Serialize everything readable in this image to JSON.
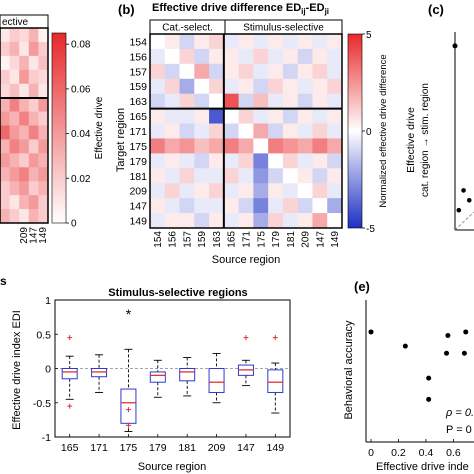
{
  "chart_data": [
    {
      "id": "a",
      "type": "heatmap",
      "panel_label": "",
      "title": "",
      "group_labels": [
        "ective"
      ],
      "colorbar_label": "Effective drive",
      "colorbar_ticks": [
        "0.08",
        "0.06",
        "0.04",
        "0.02",
        "0"
      ],
      "colorbar_range": [
        0,
        0.085
      ],
      "x_tick_labels": [
        "209",
        "147",
        "149"
      ],
      "values": [
        [
          0.01,
          0.02,
          0.015,
          0.03,
          0.005
        ],
        [
          0.02,
          0.03,
          0.01,
          0.04,
          0.02
        ],
        [
          0.005,
          0.015,
          0.03,
          0.01,
          0.025
        ],
        [
          0.02,
          0.01,
          0.04,
          0.02,
          0.015
        ],
        [
          0.015,
          0.025,
          0.01,
          0.03,
          0.01
        ],
        [
          0.03,
          0.05,
          0.03,
          0.02,
          0.04
        ],
        [
          0.04,
          0.03,
          0.05,
          0.03,
          0.02
        ],
        [
          0.06,
          0.04,
          0.03,
          0.05,
          0.03
        ],
        [
          0.03,
          0.05,
          0.04,
          0.02,
          0.04
        ],
        [
          0.04,
          0.03,
          0.02,
          0.04,
          0.03
        ],
        [
          0.03,
          0.04,
          0.05,
          0.03,
          0.04
        ],
        [
          0.02,
          0.03,
          0.04,
          0.02,
          0.03
        ],
        [
          0.02,
          0.01,
          0.03,
          0.04,
          0.02
        ],
        [
          0.03,
          0.02,
          0.01,
          0.03,
          0.02
        ]
      ]
    },
    {
      "id": "b",
      "type": "heatmap",
      "panel_label": "(b)",
      "title": "Effective drive difference ED",
      "title_sub": "ij",
      "title_dash": "-ED",
      "title_sub2": "ji",
      "group_labels": [
        "Cat.-select.",
        "Stimulus-selective"
      ],
      "xlabel": "Source region",
      "ylabel": "Target region",
      "row_labels": [
        "154",
        "156",
        "157",
        "159",
        "163",
        "165",
        "171",
        "175",
        "179",
        "181",
        "209",
        "147",
        "149"
      ],
      "col_labels": [
        "154",
        "156",
        "157",
        "159",
        "163",
        "165",
        "171",
        "175",
        "179",
        "181",
        "209",
        "147",
        "149"
      ],
      "colorbar_label": "Normalized effective drive difference",
      "colorbar_ticks": [
        "5",
        "0",
        "-5"
      ],
      "colorbar_range": [
        -5,
        5
      ],
      "divider_after": 5,
      "values": [
        [
          0,
          0.5,
          -1,
          0.5,
          1,
          -0.5,
          0.5,
          -0.5,
          0.5,
          -0.5,
          0.5,
          -0.5,
          0.5
        ],
        [
          -0.5,
          0,
          1,
          -1,
          0.5,
          0.5,
          -0.5,
          1,
          -0.5,
          0.5,
          -1,
          0.5,
          -0.5
        ],
        [
          1,
          -1,
          0,
          2,
          -1,
          0.5,
          1,
          -0.5,
          0.5,
          -1,
          0.5,
          1,
          -0.5
        ],
        [
          -0.5,
          1,
          -2,
          0,
          1,
          -0.5,
          0.5,
          -1,
          1,
          0.5,
          -0.5,
          0.5,
          1
        ],
        [
          -1,
          -0.5,
          1,
          -1,
          0,
          4,
          -1,
          1.5,
          -0.5,
          0.5,
          -1,
          0.5,
          -0.5
        ],
        [
          0.5,
          -0.5,
          -0.5,
          0.5,
          -4,
          0,
          1,
          -0.5,
          0.5,
          -1,
          0.5,
          -0.5,
          0.5
        ],
        [
          -0.5,
          0.5,
          -1,
          -0.5,
          1,
          -1,
          0,
          2,
          -1,
          0.5,
          -0.5,
          1,
          -0.5
        ],
        [
          3,
          2,
          2.5,
          1.5,
          2,
          3,
          2,
          0,
          3,
          2.5,
          2,
          3,
          2
        ],
        [
          -0.5,
          0.5,
          -0.5,
          -1,
          0.5,
          -0.5,
          1,
          -3,
          0,
          1,
          -0.5,
          0.5,
          -1
        ],
        [
          0.5,
          -0.5,
          1,
          -0.5,
          -0.5,
          1,
          -0.5,
          -2.5,
          -1,
          0,
          0.5,
          -1,
          0.5
        ],
        [
          -0.5,
          1,
          -0.5,
          0.5,
          1,
          -0.5,
          0.5,
          -2,
          0.5,
          -0.5,
          0,
          1,
          -0.5
        ],
        [
          0.5,
          -0.5,
          -1,
          -0.5,
          -0.5,
          0.5,
          -1,
          -3,
          -0.5,
          1,
          -1,
          0,
          -2
        ],
        [
          -0.5,
          0.5,
          0.5,
          -1,
          0.5,
          -0.5,
          0.5,
          -2,
          1,
          -0.5,
          0.5,
          2,
          0
        ]
      ]
    },
    {
      "id": "c",
      "type": "scatter",
      "panel_label": "(c)",
      "ylabel_line1": "Effective drive",
      "ylabel_line2": "cat. region → stim. region",
      "points": [
        {
          "x": 0.2,
          "y": 0.1
        },
        {
          "x": 0.45,
          "y": 0.2
        },
        {
          "x": 0.75,
          "y": 0.15
        }
      ],
      "marker": {
        "y": 0.93
      }
    },
    {
      "id": "d",
      "type": "box",
      "panel_label": "s",
      "title": "Stimulus-selective regions",
      "xlabel": "Source region",
      "ylabel": "Effective drive index EDI",
      "ylim": [
        -1,
        1
      ],
      "y_ticks": [
        "1",
        "0.5",
        "0",
        "-0.5",
        "-1"
      ],
      "categories": [
        "165",
        "171",
        "175",
        "179",
        "181",
        "209",
        "147",
        "149"
      ],
      "significance_mark": "*",
      "significant_index": 2,
      "boxes": [
        {
          "q1": -0.15,
          "median": -0.05,
          "q3": 0.0,
          "wl": -0.45,
          "wh": 0.18,
          "outliers": [
            0.45,
            -0.55
          ]
        },
        {
          "q1": -0.12,
          "median": -0.05,
          "q3": 0.0,
          "wl": -0.35,
          "wh": 0.2,
          "outliers": []
        },
        {
          "q1": -0.8,
          "median": -0.5,
          "q3": -0.3,
          "wl": -0.92,
          "wh": 0.28,
          "outliers": [
            -0.6,
            -0.83
          ]
        },
        {
          "q1": -0.2,
          "median": -0.1,
          "q3": -0.05,
          "wl": -0.42,
          "wh": 0.12,
          "outliers": []
        },
        {
          "q1": -0.18,
          "median": -0.05,
          "q3": 0.0,
          "wl": -0.4,
          "wh": 0.16,
          "outliers": []
        },
        {
          "q1": -0.35,
          "median": -0.2,
          "q3": 0.0,
          "wl": -0.5,
          "wh": 0.22,
          "outliers": []
        },
        {
          "q1": -0.1,
          "median": -0.02,
          "q3": 0.05,
          "wl": -0.25,
          "wh": 0.12,
          "outliers": [
            0.45
          ]
        },
        {
          "q1": -0.35,
          "median": -0.2,
          "q3": -0.02,
          "wl": -0.65,
          "wh": 0.08,
          "outliers": [
            0.45
          ]
        }
      ]
    },
    {
      "id": "e",
      "type": "scatter",
      "panel_label": "(e)",
      "xlabel": "Effective drive inde",
      "ylabel": "Behavioral accuracy",
      "x_ticks": [
        "0",
        "0.2",
        "0.4",
        "0.6"
      ],
      "xlim": [
        0,
        0.75
      ],
      "ylim": [
        0.55,
        0.95
      ],
      "stat_rho": "ρ = 0.",
      "stat_p": "P = 0",
      "points": [
        {
          "x": 0.0,
          "y": 0.86
        },
        {
          "x": 0.25,
          "y": 0.82
        },
        {
          "x": 0.42,
          "y": 0.73
        },
        {
          "x": 0.42,
          "y": 0.67
        },
        {
          "x": 0.55,
          "y": 0.8
        },
        {
          "x": 0.56,
          "y": 0.85
        },
        {
          "x": 0.68,
          "y": 0.8
        },
        {
          "x": 0.69,
          "y": 0.86
        }
      ]
    }
  ]
}
